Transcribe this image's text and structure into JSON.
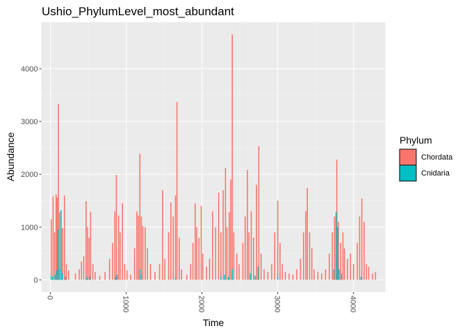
{
  "chart_data": {
    "type": "bar",
    "title": "Ushio_PhylumLevel_most_abundant",
    "xlabel": "Time",
    "ylabel": "Abundance",
    "xlim": [
      -120,
      4420
    ],
    "ylim": [
      -230,
      4880
    ],
    "x_ticks": [
      "0",
      "1000",
      "2000",
      "3000",
      "4000"
    ],
    "y_ticks": [
      "0",
      "1000",
      "2000",
      "3000",
      "4000"
    ],
    "x_tick_values": [
      0,
      1000,
      2000,
      3000,
      4000
    ],
    "y_tick_values": [
      0,
      1000,
      2000,
      3000,
      4000
    ],
    "x_tick_rotation": -90,
    "panel_background": "#ebebeb",
    "grid": true,
    "stacked": true,
    "legend": {
      "title": "Phylum",
      "position": "right",
      "entries": [
        {
          "label": "Chordata",
          "color": "#F8766D"
        },
        {
          "label": "Cnidaria",
          "color": "#00BFC4"
        }
      ]
    },
    "series": [
      {
        "name": "Chordata",
        "color": "#F8766D",
        "points": [
          [
            10,
            1150
          ],
          [
            35,
            1580
          ],
          [
            55,
            900
          ],
          [
            75,
            1620
          ],
          [
            90,
            1560
          ],
          [
            105,
            3330
          ],
          [
            120,
            1280
          ],
          [
            140,
            960
          ],
          [
            160,
            980
          ],
          [
            185,
            1600
          ],
          [
            210,
            300
          ],
          [
            240,
            180
          ],
          [
            330,
            120
          ],
          [
            380,
            200
          ],
          [
            410,
            350
          ],
          [
            440,
            450
          ],
          [
            470,
            1490
          ],
          [
            490,
            1000
          ],
          [
            510,
            800
          ],
          [
            530,
            1290
          ],
          [
            560,
            300
          ],
          [
            590,
            150
          ],
          [
            650,
            80
          ],
          [
            720,
            150
          ],
          [
            780,
            400
          ],
          [
            820,
            700
          ],
          [
            850,
            1300
          ],
          [
            870,
            1990
          ],
          [
            900,
            1220
          ],
          [
            920,
            900
          ],
          [
            950,
            1450
          ],
          [
            980,
            300
          ],
          [
            1010,
            180
          ],
          [
            1060,
            100
          ],
          [
            1110,
            600
          ],
          [
            1140,
            1300
          ],
          [
            1160,
            1220
          ],
          [
            1180,
            2390
          ],
          [
            1200,
            1200
          ],
          [
            1220,
            1020
          ],
          [
            1250,
            1000
          ],
          [
            1280,
            600
          ],
          [
            1320,
            300
          ],
          [
            1380,
            150
          ],
          [
            1440,
            300
          ],
          [
            1480,
            1700
          ],
          [
            1510,
            400
          ],
          [
            1560,
            900
          ],
          [
            1590,
            1470
          ],
          [
            1620,
            1200
          ],
          [
            1650,
            1600
          ],
          [
            1670,
            3370
          ],
          [
            1700,
            800
          ],
          [
            1730,
            200
          ],
          [
            1800,
            100
          ],
          [
            1850,
            300
          ],
          [
            1880,
            700
          ],
          [
            1910,
            1450
          ],
          [
            1930,
            1000
          ],
          [
            1960,
            800
          ],
          [
            1990,
            1400
          ],
          [
            2010,
            500
          ],
          [
            2060,
            250
          ],
          [
            2100,
            400
          ],
          [
            2140,
            1300
          ],
          [
            2180,
            1000
          ],
          [
            2220,
            1650
          ],
          [
            2250,
            900
          ],
          [
            2280,
            1700
          ],
          [
            2310,
            2120
          ],
          [
            2330,
            1000
          ],
          [
            2360,
            1280
          ],
          [
            2380,
            1900
          ],
          [
            2400,
            4650
          ],
          [
            2420,
            900
          ],
          [
            2460,
            500
          ],
          [
            2490,
            300
          ],
          [
            2540,
            700
          ],
          [
            2570,
            1200
          ],
          [
            2600,
            2080
          ],
          [
            2620,
            900
          ],
          [
            2650,
            1300
          ],
          [
            2680,
            800
          ],
          [
            2720,
            1800
          ],
          [
            2750,
            2530
          ],
          [
            2780,
            500
          ],
          [
            2820,
            200
          ],
          [
            2870,
            150
          ],
          [
            2920,
            300
          ],
          [
            2960,
            900
          ],
          [
            3000,
            1500
          ],
          [
            3030,
            700
          ],
          [
            3060,
            300
          ],
          [
            3100,
            150
          ],
          [
            3150,
            120
          ],
          [
            3200,
            100
          ],
          [
            3250,
            200
          ],
          [
            3300,
            400
          ],
          [
            3340,
            900
          ],
          [
            3370,
            1300
          ],
          [
            3390,
            1740
          ],
          [
            3420,
            900
          ],
          [
            3450,
            600
          ],
          [
            3480,
            200
          ],
          [
            3530,
            150
          ],
          [
            3580,
            120
          ],
          [
            3630,
            200
          ],
          [
            3680,
            500
          ],
          [
            3720,
            900
          ],
          [
            3750,
            1200
          ],
          [
            3780,
            2280
          ],
          [
            3800,
            1100
          ],
          [
            3830,
            700
          ],
          [
            3860,
            900
          ],
          [
            3880,
            600
          ],
          [
            3920,
            400
          ],
          [
            3960,
            500
          ],
          [
            4000,
            300
          ],
          [
            4050,
            700
          ],
          [
            4080,
            1200
          ],
          [
            4110,
            1540
          ],
          [
            4140,
            1100
          ],
          [
            4170,
            300
          ],
          [
            4200,
            250
          ],
          [
            4250,
            120
          ],
          [
            4290,
            150
          ]
        ]
      },
      {
        "name": "Cnidaria",
        "color": "#00BFC4",
        "points": [
          [
            10,
            80
          ],
          [
            30,
            60
          ],
          [
            60,
            100
          ],
          [
            85,
            180
          ],
          [
            100,
            950
          ],
          [
            120,
            200
          ],
          [
            140,
            1320
          ],
          [
            160,
            120
          ],
          [
            200,
            60
          ],
          [
            480,
            40
          ],
          [
            520,
            60
          ],
          [
            860,
            60
          ],
          [
            880,
            100
          ],
          [
            1180,
            200
          ],
          [
            1200,
            100
          ],
          [
            1650,
            30
          ],
          [
            2250,
            60
          ],
          [
            2300,
            100
          ],
          [
            2350,
            60
          ],
          [
            2400,
            200
          ],
          [
            2640,
            120
          ],
          [
            2700,
            80
          ],
          [
            2740,
            250
          ],
          [
            3000,
            60
          ],
          [
            3740,
            200
          ],
          [
            3770,
            1280
          ],
          [
            3790,
            1000
          ],
          [
            3810,
            200
          ],
          [
            3840,
            120
          ],
          [
            4100,
            60
          ]
        ]
      }
    ]
  }
}
